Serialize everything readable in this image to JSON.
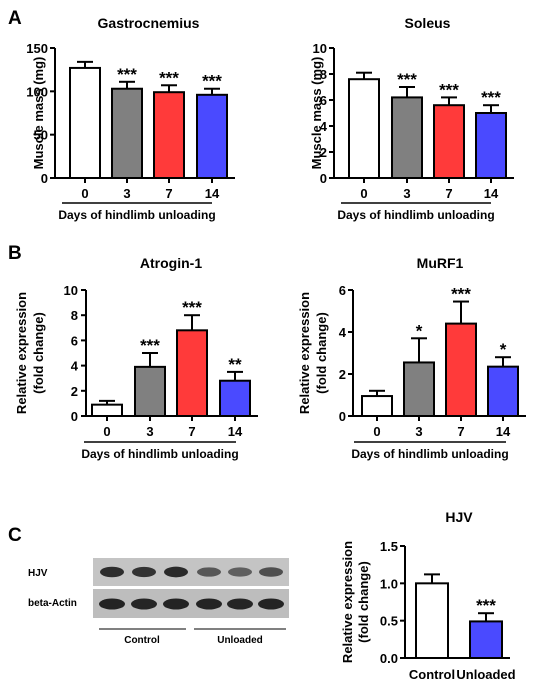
{
  "panels": {
    "a": "A",
    "b": "B",
    "c": "C"
  },
  "chart_data": [
    {
      "id": "gastrocnemius",
      "type": "bar",
      "title": "Gastrocnemius",
      "ylabel": "Muscle mass (mg)",
      "xlabel": "Days of hindlimb unloading",
      "categories": [
        "0",
        "3",
        "7",
        "14"
      ],
      "values": [
        127,
        103,
        99,
        96
      ],
      "errors": [
        7,
        8,
        8,
        7
      ],
      "significance": [
        "",
        "***",
        "***",
        "***"
      ],
      "ylim": [
        0,
        150
      ],
      "yticks": [
        "0",
        "50",
        "100",
        "150"
      ],
      "colors": [
        "#ffffff",
        "#808080",
        "#ff3a3a",
        "#4a4aff"
      ]
    },
    {
      "id": "soleus",
      "type": "bar",
      "title": "Soleus",
      "ylabel": "Muscle mass (mg)",
      "xlabel": "Days of hindlimb unloading",
      "categories": [
        "0",
        "3",
        "7",
        "14"
      ],
      "values": [
        7.6,
        6.2,
        5.6,
        5.0
      ],
      "errors": [
        0.5,
        0.8,
        0.6,
        0.6
      ],
      "significance": [
        "",
        "***",
        "***",
        "***"
      ],
      "ylim": [
        0,
        10
      ],
      "yticks": [
        "0",
        "2",
        "4",
        "6",
        "8",
        "10"
      ],
      "colors": [
        "#ffffff",
        "#808080",
        "#ff3a3a",
        "#4a4aff"
      ]
    },
    {
      "id": "atrogin",
      "type": "bar",
      "title": "Atrogin-1",
      "ylabel": "Relative expression|(fold change)",
      "xlabel": "Days of hindlimb unloading",
      "categories": [
        "0",
        "3",
        "7",
        "14"
      ],
      "values": [
        0.9,
        3.9,
        6.8,
        2.8
      ],
      "errors": [
        0.3,
        1.1,
        1.2,
        0.7
      ],
      "significance": [
        "",
        "***",
        "***",
        "**"
      ],
      "ylim": [
        0,
        10
      ],
      "yticks": [
        "0",
        "2",
        "4",
        "6",
        "8",
        "10"
      ],
      "colors": [
        "#ffffff",
        "#808080",
        "#ff3a3a",
        "#4a4aff"
      ]
    },
    {
      "id": "murf1",
      "type": "bar",
      "title": "MuRF1",
      "ylabel": "Relative expression|(fold change)",
      "xlabel": "Days of hindlimb unloading",
      "categories": [
        "0",
        "3",
        "7",
        "14"
      ],
      "values": [
        0.95,
        2.55,
        4.4,
        2.35
      ],
      "errors": [
        0.25,
        1.15,
        1.05,
        0.45
      ],
      "significance": [
        "",
        "*",
        "***",
        "*"
      ],
      "ylim": [
        0,
        6
      ],
      "yticks": [
        "0",
        "2",
        "4",
        "6"
      ],
      "colors": [
        "#ffffff",
        "#808080",
        "#ff3a3a",
        "#4a4aff"
      ]
    },
    {
      "id": "hjv",
      "type": "bar",
      "title": "HJV",
      "ylabel": "Relative expression|(fold change)",
      "xlabel": "",
      "categories": [
        "Control",
        "Unloaded"
      ],
      "values": [
        1.0,
        0.49
      ],
      "errors": [
        0.12,
        0.11
      ],
      "significance": [
        "",
        "***"
      ],
      "ylim": [
        0,
        1.5
      ],
      "yticks": [
        "0.0",
        "0.5",
        "1.0",
        "1.5"
      ],
      "colors": [
        "#ffffff",
        "#4a4aff"
      ]
    }
  ],
  "blot": {
    "rows": [
      "HJV",
      "beta-Actin"
    ],
    "groups": [
      "Control",
      "Unloaded"
    ],
    "hjv_band_intensity": [
      0.85,
      0.78,
      0.88,
      0.45,
      0.38,
      0.52
    ],
    "actin_band_intensity": [
      0.9,
      0.88,
      0.9,
      0.9,
      0.88,
      0.9
    ]
  }
}
